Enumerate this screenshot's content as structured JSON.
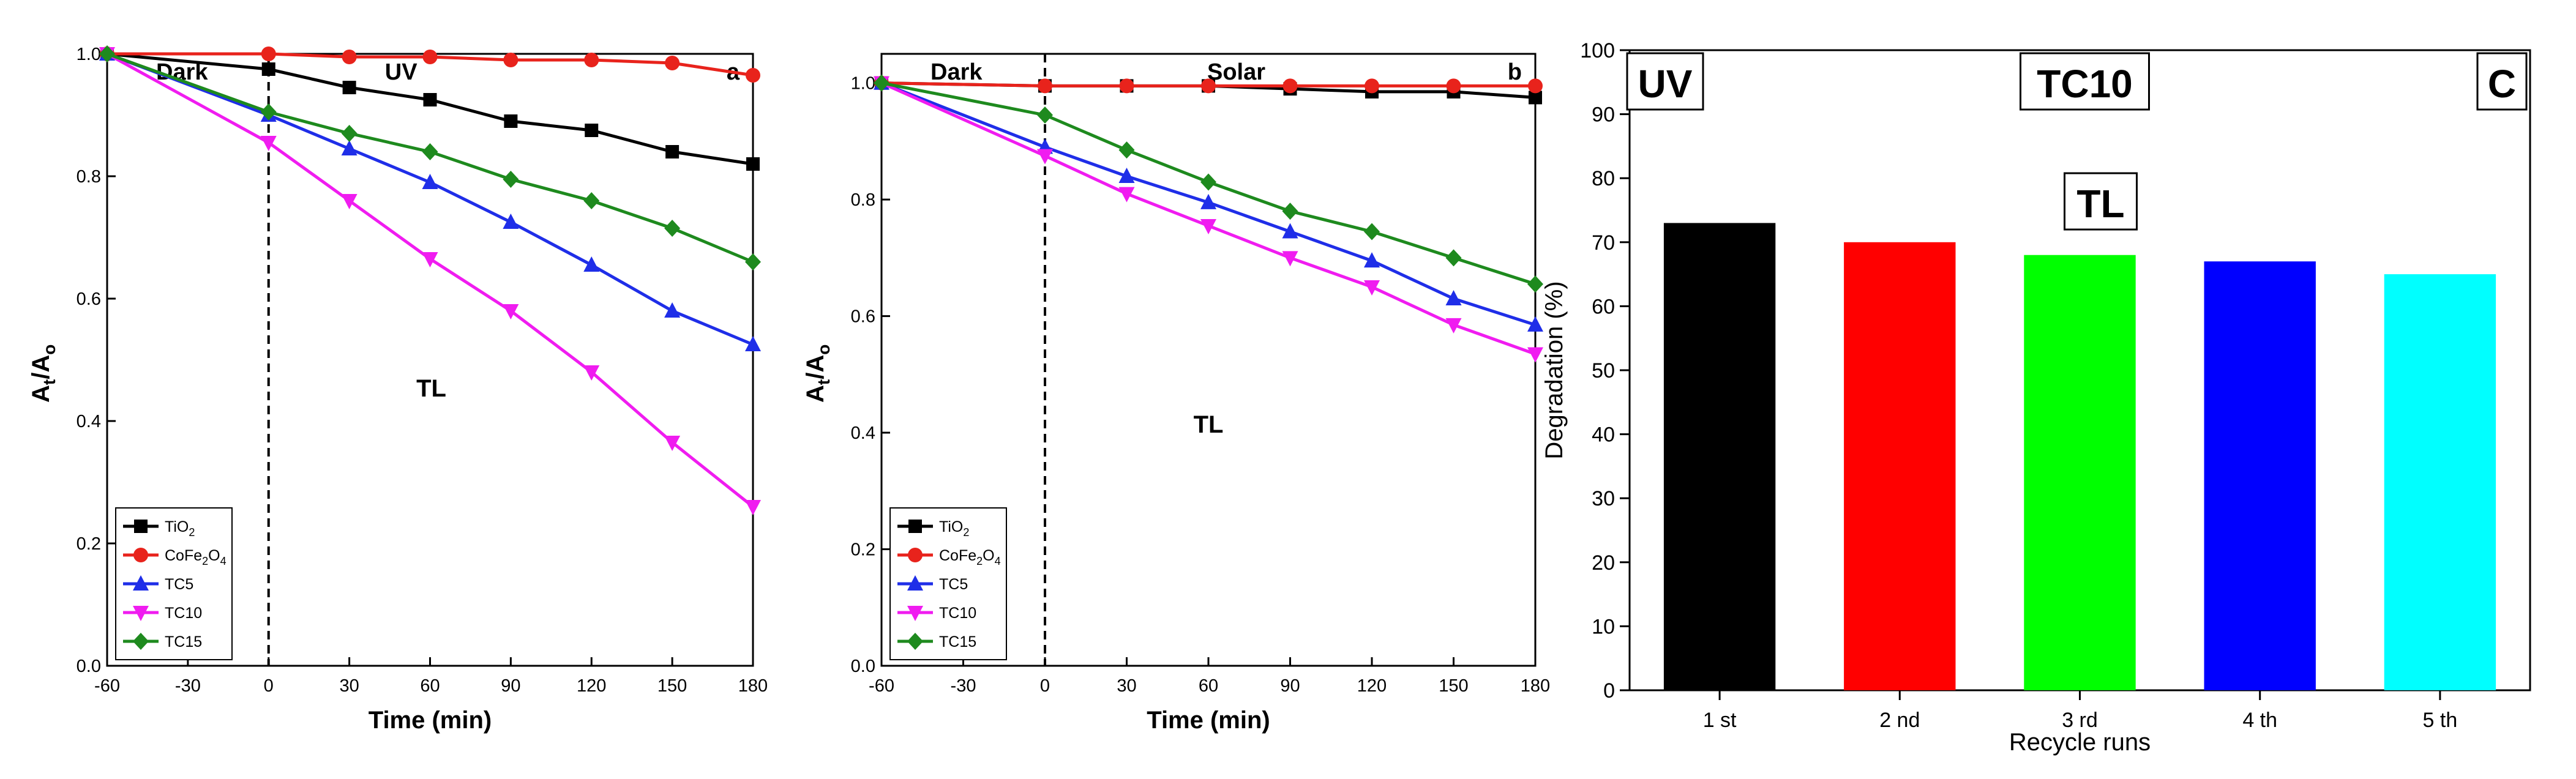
{
  "chart_data": [
    {
      "type": "line",
      "panel_label": "a",
      "region_left": "Dark",
      "region_right": "UV",
      "annotation": "TL",
      "xlabel": "Time (min)",
      "ylabel": "A t/A o",
      "ylabel_main": "A",
      "ylabel_sub1": "t",
      "ylabel_mid": "/A",
      "ylabel_sub2": "o",
      "x": [
        -60,
        0,
        30,
        60,
        90,
        120,
        150,
        180
      ],
      "xlim": [
        -60,
        180
      ],
      "ylim": [
        0.0,
        1.0
      ],
      "xticks": [
        -60,
        -30,
        0,
        30,
        60,
        90,
        120,
        150,
        180
      ],
      "yticks": [
        0.0,
        0.2,
        0.4,
        0.6,
        0.8,
        1.0
      ],
      "divider_x": 0,
      "series": [
        {
          "name": "TiO2",
          "label_main": "TiO",
          "label_sub": "2",
          "label_tail": "",
          "color": "#000000",
          "marker": "square",
          "values": [
            1.0,
            0.975,
            0.945,
            0.925,
            0.89,
            0.875,
            0.84,
            0.82
          ]
        },
        {
          "name": "CoFe2O4",
          "label_main": "CoFe",
          "label_sub": "2",
          "label_tail": "O",
          "label_sub2": "4",
          "color": "#e8231c",
          "marker": "circle",
          "values": [
            1.0,
            1.0,
            0.995,
            0.995,
            0.99,
            0.99,
            0.985,
            0.965
          ]
        },
        {
          "name": "TC5",
          "label_main": "TC5",
          "label_sub": "",
          "label_tail": "",
          "color": "#1f2ee8",
          "marker": "triangle-up",
          "values": [
            1.0,
            0.9,
            0.845,
            0.79,
            0.725,
            0.655,
            0.58,
            0.525
          ]
        },
        {
          "name": "TC10",
          "label_main": "TC10",
          "label_sub": "",
          "label_tail": "",
          "color": "#f01cf0",
          "marker": "triangle-down",
          "values": [
            1.0,
            0.855,
            0.76,
            0.665,
            0.58,
            0.48,
            0.365,
            0.26
          ]
        },
        {
          "name": "TC15",
          "label_main": "TC15",
          "label_sub": "",
          "label_tail": "",
          "color": "#1e8a1e",
          "marker": "diamond",
          "values": [
            1.0,
            0.905,
            0.87,
            0.84,
            0.795,
            0.76,
            0.715,
            0.66
          ]
        }
      ]
    },
    {
      "type": "line",
      "panel_label": "b",
      "region_left": "Dark",
      "region_right": "Solar",
      "annotation": "TL",
      "xlabel": "Time (min)",
      "ylabel": "A t/A o",
      "ylabel_main": "A",
      "ylabel_sub1": "t",
      "ylabel_mid": "/A",
      "ylabel_sub2": "o",
      "x": [
        -60,
        0,
        30,
        60,
        90,
        120,
        150,
        180
      ],
      "xlim": [
        -60,
        180
      ],
      "ylim": [
        0.0,
        1.05
      ],
      "xticks": [
        -60,
        -30,
        0,
        30,
        60,
        90,
        120,
        150,
        180
      ],
      "yticks": [
        0.0,
        0.2,
        0.4,
        0.6,
        0.8,
        1.0
      ],
      "divider_x": 0,
      "series": [
        {
          "name": "TiO2",
          "label_main": "TiO",
          "label_sub": "2",
          "label_tail": "",
          "color": "#000000",
          "marker": "square",
          "values": [
            1.0,
            0.995,
            0.995,
            0.995,
            0.99,
            0.985,
            0.985,
            0.975
          ]
        },
        {
          "name": "CoFe2O4",
          "label_main": "CoFe",
          "label_sub": "2",
          "label_tail": "O",
          "label_sub2": "4",
          "color": "#e8231c",
          "marker": "circle",
          "values": [
            1.0,
            0.995,
            0.995,
            0.995,
            0.995,
            0.995,
            0.995,
            0.995
          ]
        },
        {
          "name": "TC5",
          "label_main": "TC5",
          "label_sub": "",
          "label_tail": "",
          "color": "#1f2ee8",
          "marker": "triangle-up",
          "values": [
            1.0,
            0.89,
            0.84,
            0.795,
            0.745,
            0.695,
            0.63,
            0.585
          ]
        },
        {
          "name": "TC10",
          "label_main": "TC10",
          "label_sub": "",
          "label_tail": "",
          "color": "#f01cf0",
          "marker": "triangle-down",
          "values": [
            1.0,
            0.875,
            0.81,
            0.755,
            0.7,
            0.65,
            0.585,
            0.535
          ]
        },
        {
          "name": "TC15",
          "label_main": "TC15",
          "label_sub": "",
          "label_tail": "",
          "color": "#1e8a1e",
          "marker": "diamond",
          "values": [
            1.0,
            0.945,
            0.885,
            0.83,
            0.78,
            0.745,
            0.7,
            0.655
          ]
        }
      ]
    },
    {
      "type": "bar",
      "panel_label": "C",
      "label_uv": "UV",
      "label_sample": "TC10",
      "annotation": "TL",
      "xlabel": "Recycle runs",
      "ylabel": "Degradation (%)",
      "ylim": [
        0,
        100
      ],
      "yticks": [
        0,
        10,
        20,
        30,
        40,
        50,
        60,
        70,
        80,
        90,
        100
      ],
      "categories": [
        "1 st",
        "2 nd",
        "3 rd",
        "4 th",
        "5 th"
      ],
      "values": [
        73,
        70,
        68,
        67,
        65
      ],
      "colors": [
        "#000000",
        "#ff0000",
        "#00ff00",
        "#0000ff",
        "#00ffff"
      ]
    }
  ]
}
